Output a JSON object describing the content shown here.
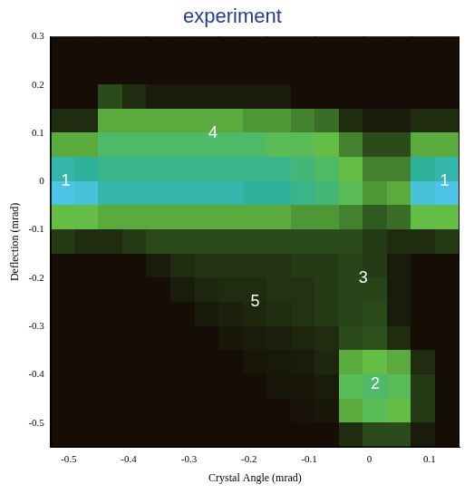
{
  "chart_data": {
    "type": "heatmap",
    "title": "experiment",
    "x_label": "Crystal Angle (mrad)",
    "y_label": "Deflection (mrad)",
    "xlim": [
      -0.53,
      0.15
    ],
    "xticks": [
      -0.5,
      -0.4,
      -0.3,
      -0.2,
      -0.1,
      0,
      0.1
    ],
    "ylim": [
      -0.55,
      0.3
    ],
    "yticks": [
      -0.5,
      -0.4,
      -0.3,
      -0.2,
      -0.1,
      0,
      0.1,
      0.2,
      0.3
    ],
    "grid": false,
    "x": [
      -0.51,
      -0.47,
      -0.43,
      -0.39,
      -0.35,
      -0.31,
      -0.27,
      -0.23,
      -0.19,
      -0.15,
      -0.11,
      -0.07,
      -0.03,
      0.01,
      0.05,
      0.09,
      0.13
    ],
    "y": [
      0.275,
      0.225,
      0.175,
      0.125,
      0.075,
      0.025,
      -0.025,
      -0.075,
      -0.125,
      -0.175,
      -0.225,
      -0.275,
      -0.325,
      -0.375,
      -0.425,
      -0.475,
      -0.525
    ],
    "zlim": [
      0,
      1
    ],
    "z": [
      [
        0,
        0,
        0,
        0,
        0,
        0,
        0,
        0,
        0,
        0,
        0,
        0,
        0,
        0,
        0,
        0,
        0
      ],
      [
        0,
        0,
        0,
        0,
        0,
        0,
        0,
        0,
        0,
        0,
        0,
        0,
        0,
        0,
        0,
        0,
        0
      ],
      [
        0,
        0,
        0.2,
        0.1,
        0.05,
        0.05,
        0.05,
        0.05,
        0.05,
        0.05,
        0,
        0,
        0,
        0,
        0,
        0,
        0
      ],
      [
        0.1,
        0.1,
        0.45,
        0.45,
        0.45,
        0.45,
        0.45,
        0.45,
        0.4,
        0.4,
        0.35,
        0.3,
        0.1,
        0.05,
        0.05,
        0.1,
        0.1
      ],
      [
        0.45,
        0.45,
        0.6,
        0.6,
        0.6,
        0.6,
        0.6,
        0.6,
        0.6,
        0.55,
        0.55,
        0.5,
        0.35,
        0.2,
        0.2,
        0.45,
        0.45
      ],
      [
        0.8,
        0.75,
        0.7,
        0.7,
        0.7,
        0.7,
        0.7,
        0.7,
        0.7,
        0.7,
        0.65,
        0.6,
        0.5,
        0.35,
        0.35,
        0.75,
        0.8
      ],
      [
        1,
        0.95,
        0.8,
        0.8,
        0.8,
        0.8,
        0.8,
        0.8,
        0.75,
        0.75,
        0.7,
        0.65,
        0.55,
        0.4,
        0.45,
        0.95,
        1
      ],
      [
        0.5,
        0.5,
        0.45,
        0.45,
        0.45,
        0.45,
        0.45,
        0.45,
        0.45,
        0.45,
        0.4,
        0.4,
        0.35,
        0.25,
        0.3,
        0.5,
        0.5
      ],
      [
        0.15,
        0.1,
        0.1,
        0.15,
        0.2,
        0.2,
        0.2,
        0.2,
        0.2,
        0.2,
        0.2,
        0.2,
        0.2,
        0.15,
        0.1,
        0.1,
        0.15
      ],
      [
        0,
        0,
        0,
        0,
        0.05,
        0.1,
        0.12,
        0.12,
        0.12,
        0.12,
        0.15,
        0.15,
        0.18,
        0.15,
        0.05,
        0,
        0
      ],
      [
        0,
        0,
        0,
        0,
        0,
        0.05,
        0.08,
        0.1,
        0.1,
        0.12,
        0.12,
        0.15,
        0.18,
        0.18,
        0.05,
        0,
        0
      ],
      [
        0,
        0,
        0,
        0,
        0,
        0,
        0.04,
        0.06,
        0.08,
        0.1,
        0.12,
        0.15,
        0.18,
        0.2,
        0.05,
        0,
        0
      ],
      [
        0,
        0,
        0,
        0,
        0,
        0,
        0,
        0.03,
        0.05,
        0.06,
        0.08,
        0.1,
        0.2,
        0.22,
        0.1,
        0,
        0
      ],
      [
        0,
        0,
        0,
        0,
        0,
        0,
        0,
        0,
        0.03,
        0.04,
        0.05,
        0.08,
        0.45,
        0.5,
        0.45,
        0.1,
        0
      ],
      [
        0,
        0,
        0,
        0,
        0,
        0,
        0,
        0,
        0,
        0.03,
        0.03,
        0.05,
        0.55,
        0.6,
        0.55,
        0.15,
        0
      ],
      [
        0,
        0,
        0,
        0,
        0,
        0,
        0,
        0,
        0,
        0,
        0.02,
        0.03,
        0.45,
        0.55,
        0.5,
        0.15,
        0
      ],
      [
        0,
        0,
        0,
        0,
        0,
        0,
        0,
        0,
        0,
        0,
        0,
        0,
        0.1,
        0.2,
        0.2,
        0.05,
        0
      ]
    ],
    "annotations": [
      {
        "text": "1",
        "x": -0.505,
        "y": 0.0
      },
      {
        "text": "1",
        "x": 0.125,
        "y": 0.0
      },
      {
        "text": "4",
        "x": -0.26,
        "y": 0.1
      },
      {
        "text": "3",
        "x": -0.01,
        "y": -0.2
      },
      {
        "text": "2",
        "x": 0.01,
        "y": -0.42
      },
      {
        "text": "5",
        "x": -0.19,
        "y": -0.25
      }
    ]
  }
}
